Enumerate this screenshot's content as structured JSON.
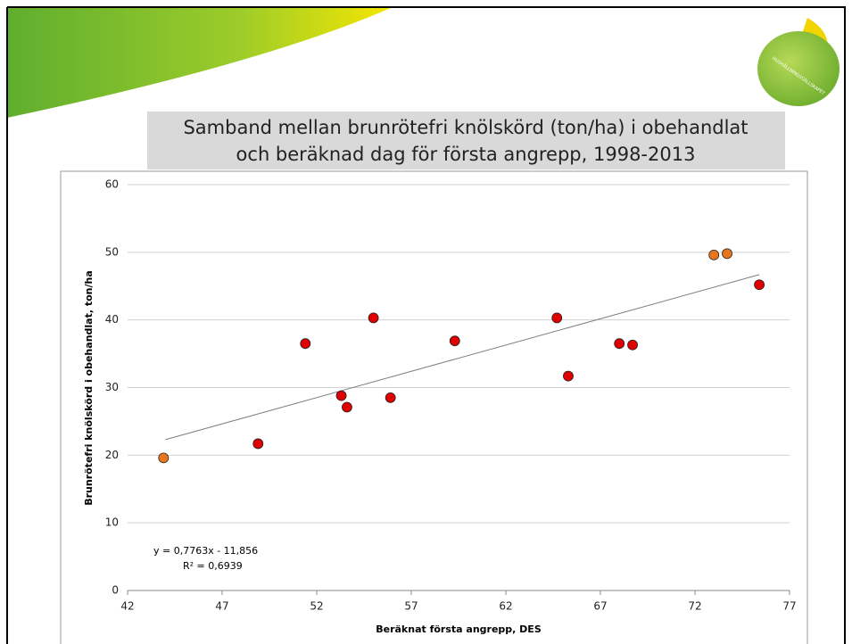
{
  "logo": {
    "text": "HUSHÅLLNINGSSÄLLSKAPET"
  },
  "chart_data": {
    "type": "scatter",
    "title": [
      "Samband mellan brunrötefri knölskörd (ton/ha) i obehandlat",
      "och beräknad dag för första angrepp, 1998-2013"
    ],
    "x_label": "Beräknat första angrepp, DES",
    "y_label": "Brunrötefri knölskörd i obehandlat, ton/ha",
    "annotations": [
      "y = 0,7763x - 11,856",
      "R² = 0,6939"
    ],
    "xlim": [
      42,
      77
    ],
    "xticks": [
      42,
      47,
      52,
      57,
      62,
      67,
      72,
      77
    ],
    "ylim": [
      0,
      60
    ],
    "yticks": [
      0,
      10,
      20,
      30,
      40,
      50,
      60
    ],
    "grid": true,
    "series": [
      {
        "color": "#e8761e",
        "x": [
          43.9,
          73.0,
          73.7
        ],
        "values": [
          19.6,
          49.6,
          49.8
        ]
      },
      {
        "color": "#e00000",
        "x": [
          48.9,
          51.4,
          53.3,
          53.6,
          55.0,
          55.9,
          59.3,
          64.7,
          65.3,
          68.0,
          68.7,
          75.4
        ],
        "values": [
          21.7,
          36.5,
          28.8,
          27.1,
          40.3,
          28.5,
          36.9,
          40.3,
          31.7,
          36.5,
          36.3,
          45.2
        ]
      }
    ],
    "trendline": {
      "color": "#7f7f7f",
      "x": [
        44,
        75.4
      ],
      "values": [
        22.3,
        46.7
      ]
    }
  }
}
